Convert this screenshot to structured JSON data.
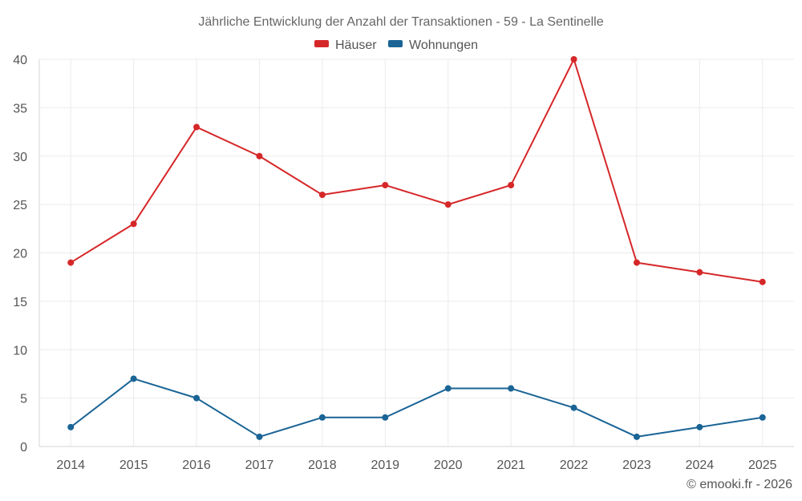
{
  "chart_data": {
    "type": "line",
    "title": "Jährliche Entwicklung der Anzahl der Transaktionen - 59 - La Sentinelle",
    "xlabel": "",
    "ylabel": "",
    "categories": [
      "2014",
      "2015",
      "2016",
      "2017",
      "2018",
      "2019",
      "2020",
      "2021",
      "2022",
      "2023",
      "2024",
      "2025"
    ],
    "ylim": [
      0,
      40
    ],
    "yticks": [
      0,
      5,
      10,
      15,
      20,
      25,
      30,
      35,
      40
    ],
    "grid": true,
    "legend_position": "top-center",
    "series": [
      {
        "name": "Häuser",
        "color": "#d62728",
        "values": [
          19,
          23,
          33,
          30,
          26,
          27,
          25,
          27,
          40,
          19,
          18,
          17
        ]
      },
      {
        "name": "Wohnungen",
        "color": "#1a6496",
        "values": [
          2,
          7,
          5,
          1,
          3,
          3,
          6,
          6,
          4,
          1,
          2,
          3
        ]
      }
    ]
  },
  "credit": "© emooki.fr - 2026"
}
